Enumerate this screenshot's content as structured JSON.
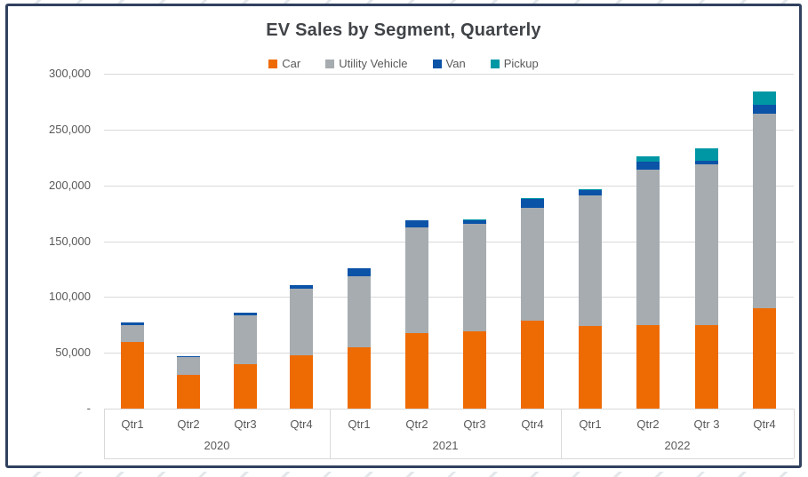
{
  "window": {
    "frame_border_color": "#31415f",
    "background_color": "#ffffff"
  },
  "chart_data": {
    "type": "bar",
    "stacked": true,
    "title": "EV Sales by Segment, Quarterly",
    "legend_position": "top",
    "grid": true,
    "ylim": [
      0,
      300000
    ],
    "ytick_interval": 50000,
    "ytick_labels_top_down": [
      "300,000",
      "250,000",
      "200,000",
      "150,000",
      "100,000",
      "50,000",
      "-"
    ],
    "categories": [
      "Qtr1",
      "Qtr2",
      "Qtr3",
      "Qtr4",
      "Qtr1",
      "Qtr2",
      "Qtr3",
      "Qtr4",
      "Qtr1",
      "Qtr2",
      "Qtr 3",
      "Qtr4"
    ],
    "x_axis_groups": [
      {
        "year": "2020",
        "quarters": [
          "Qtr1",
          "Qtr2",
          "Qtr3",
          "Qtr4"
        ]
      },
      {
        "year": "2021",
        "quarters": [
          "Qtr1",
          "Qtr2",
          "Qtr3",
          "Qtr4"
        ]
      },
      {
        "year": "2022",
        "quarters": [
          "Qtr1",
          "Qtr2",
          "Qtr 3",
          "Qtr4"
        ]
      }
    ],
    "series": [
      {
        "name": "Car",
        "color": "#ee6b04",
        "values": [
          60000,
          30000,
          40000,
          48000,
          55000,
          68000,
          69000,
          79000,
          74000,
          75000,
          75000,
          90000
        ]
      },
      {
        "name": "Utility Vehicle",
        "color": "#a6acb0",
        "values": [
          15000,
          16000,
          44000,
          60000,
          64000,
          95000,
          96000,
          101000,
          117000,
          139000,
          144000,
          174000
        ]
      },
      {
        "name": "Van",
        "color": "#0b53a7",
        "values": [
          2000,
          1000,
          2000,
          3000,
          7000,
          6000,
          3000,
          8000,
          5000,
          7000,
          3000,
          8000
        ]
      },
      {
        "name": "Pickup",
        "color": "#0097a5",
        "values": [
          0,
          0,
          0,
          0,
          0,
          0,
          1000,
          1000,
          1000,
          5000,
          11000,
          12000
        ]
      }
    ],
    "style": {
      "gridline_color": "#d9d9d9",
      "axis_label_color": "#595959",
      "title_color": "#404347"
    }
  }
}
